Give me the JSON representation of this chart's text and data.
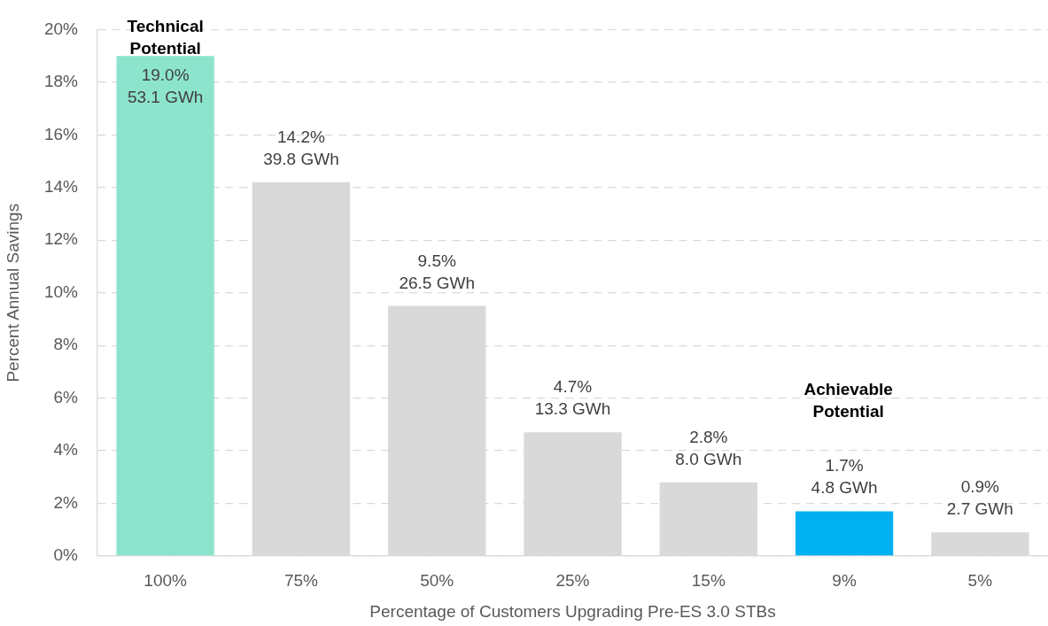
{
  "chart_data": {
    "type": "bar",
    "xlabel": "Percentage of Customers Upgrading Pre-ES 3.0 STBs",
    "ylabel": "Percent Annual Savings",
    "categories": [
      "100%",
      "75%",
      "50%",
      "25%",
      "15%",
      "9%",
      "5%"
    ],
    "values": [
      19.0,
      14.2,
      9.5,
      4.7,
      2.8,
      1.7,
      0.9
    ],
    "colors": [
      "#8de4cc",
      "#d9d9d9",
      "#d9d9d9",
      "#d9d9d9",
      "#d9d9d9",
      "#00b0f0",
      "#d9d9d9"
    ],
    "value_labels": [
      "19.0%\n53.1 GWh",
      "14.2%\n39.8 GWh",
      "9.5%\n26.5 GWh",
      "4.7%\n13.3 GWh",
      "2.8%\n8.0 GWh",
      "1.7%\n4.8 GWh",
      "0.9%\n2.7 GWh"
    ],
    "ylim": [
      0,
      20
    ],
    "yticks": [
      {
        "value": 0,
        "label": "0%"
      },
      {
        "value": 2,
        "label": "2%"
      },
      {
        "value": 4,
        "label": "4%"
      },
      {
        "value": 6,
        "label": "6%"
      },
      {
        "value": 8,
        "label": "8%"
      },
      {
        "value": 10,
        "label": "10%"
      },
      {
        "value": 12,
        "label": "12%"
      },
      {
        "value": 14,
        "label": "14%"
      },
      {
        "value": 16,
        "label": "16%"
      },
      {
        "value": 18,
        "label": "18%"
      },
      {
        "value": 20,
        "label": "20%"
      }
    ],
    "grid": "y",
    "legend": false,
    "annotations": [
      {
        "text": "Technical\nPotential",
        "x": "100%",
        "y": 19.0
      },
      "Achievable\nPotential"
    ]
  }
}
